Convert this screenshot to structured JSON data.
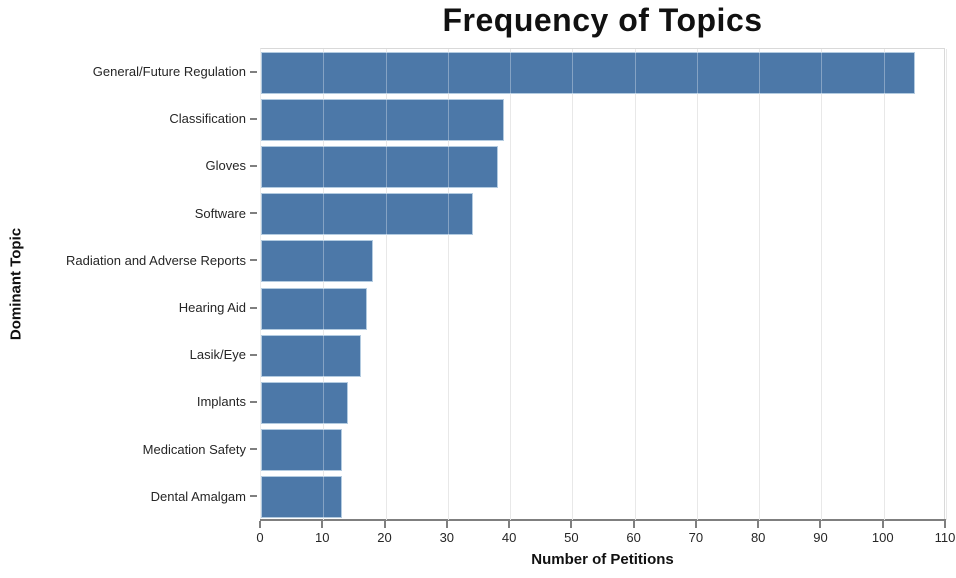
{
  "chart_data": {
    "type": "bar",
    "orientation": "horizontal",
    "title": "Frequency of Topics",
    "xlabel": "Number of Petitions",
    "ylabel": "Dominant Topic",
    "categories": [
      "General/Future Regulation",
      "Classification",
      "Gloves",
      "Software",
      "Radiation and Adverse Reports",
      "Hearing Aid",
      "Lasik/Eye",
      "Implants",
      "Medication Safety",
      "Dental Amalgam"
    ],
    "values": [
      105,
      39,
      38,
      34,
      18,
      17,
      16,
      14,
      13,
      13
    ],
    "xlim": [
      0,
      110
    ],
    "xticks": [
      0,
      10,
      20,
      30,
      40,
      50,
      60,
      70,
      80,
      90,
      100,
      110
    ],
    "bar_color": "#4c78a8",
    "grid": true,
    "legend_position": "none"
  }
}
